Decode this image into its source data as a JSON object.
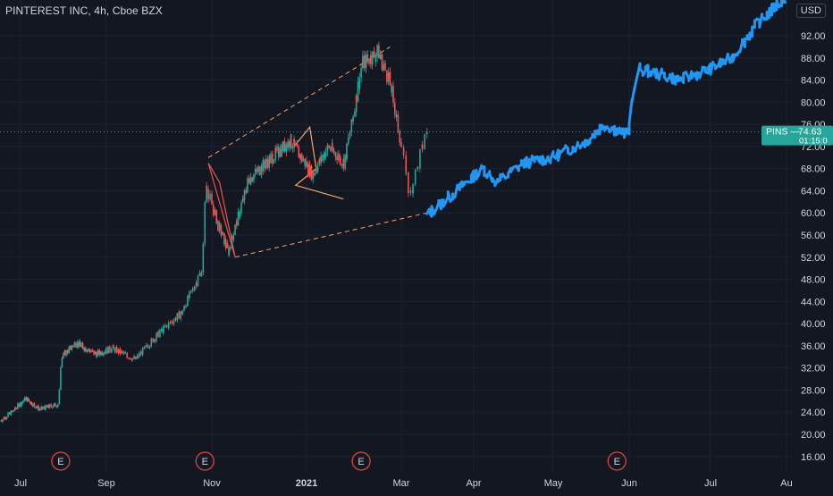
{
  "header": {
    "title": "PINTEREST INC, 4h, Cboe BZX",
    "currency": "USD"
  },
  "price_tag": {
    "symbol": "PINS",
    "price": "74.63",
    "countdown": "01:15:0"
  },
  "earnings_label": "E",
  "colors": {
    "background": "#131722",
    "grid": "#1e222d",
    "up": "#26a69a",
    "down": "#ef5350",
    "projection": "#2196f3",
    "pattern": "#f7a26b",
    "triangle": "#ef5350",
    "tag": "#26a69a",
    "text": "#d1d4dc",
    "earnings": "#e0453a"
  },
  "chart_data": {
    "type": "candlestick",
    "title": "PINTEREST INC, 4h, Cboe BZX",
    "currency": "USD",
    "last_price": 74.63,
    "ylim": [
      14,
      98
    ],
    "y_ticks": [
      16,
      20,
      24,
      28,
      32,
      36,
      40,
      44,
      48,
      52,
      56,
      60,
      64,
      68,
      72,
      76,
      80,
      84,
      88,
      92
    ],
    "x_ticks": [
      "Jul",
      "Sep",
      "Nov",
      "2021",
      "Mar",
      "Apr",
      "May",
      "Jun",
      "Jul",
      "Au"
    ],
    "x_tick_dates": [
      "2020-07-01",
      "2020-09-01",
      "2020-11-01",
      "2021-01-01",
      "2021-03-01",
      "2021-04-01",
      "2021-05-01",
      "2021-06-01",
      "2021-07-01",
      "2021-08-01"
    ],
    "earnings_dates": [
      "2020-07-30",
      "2020-10-28",
      "2021-02-04",
      "2021-05-27"
    ],
    "price_anchors": [
      [
        "2020-06-17",
        22.5
      ],
      [
        "2020-06-25",
        24.0
      ],
      [
        "2020-07-05",
        26.5
      ],
      [
        "2020-07-15",
        24.5
      ],
      [
        "2020-07-29",
        25.5
      ],
      [
        "2020-07-31",
        34.0
      ],
      [
        "2020-08-10",
        36.5
      ],
      [
        "2020-08-25",
        34.5
      ],
      [
        "2020-09-05",
        35.5
      ],
      [
        "2020-09-18",
        33.5
      ],
      [
        "2020-10-01",
        38.0
      ],
      [
        "2020-10-15",
        42.0
      ],
      [
        "2020-10-27",
        50.0
      ],
      [
        "2020-10-29",
        65.0
      ],
      [
        "2020-11-05",
        58.0
      ],
      [
        "2020-11-12",
        53.0
      ],
      [
        "2020-11-25",
        66.0
      ],
      [
        "2020-12-10",
        70.0
      ],
      [
        "2020-12-22",
        73.0
      ],
      [
        "2021-01-05",
        67.0
      ],
      [
        "2021-01-15",
        72.0
      ],
      [
        "2021-01-25",
        69.0
      ],
      [
        "2021-02-05",
        87.0
      ],
      [
        "2021-02-15",
        89.0
      ],
      [
        "2021-02-22",
        84.0
      ],
      [
        "2021-03-01",
        73.0
      ],
      [
        "2021-03-05",
        63.0
      ],
      [
        "2021-03-12",
        74.6
      ]
    ],
    "projection_path": [
      [
        "2021-03-12",
        59.5
      ],
      [
        "2021-03-25",
        64.0
      ],
      [
        "2021-04-05",
        68.0
      ],
      [
        "2021-04-10",
        65.5
      ],
      [
        "2021-04-20",
        69.0
      ],
      [
        "2021-05-01",
        70.0
      ],
      [
        "2021-05-15",
        73.0
      ],
      [
        "2021-05-22",
        76.0
      ],
      [
        "2021-06-01",
        74.0
      ],
      [
        "2021-06-02",
        80.0
      ],
      [
        "2021-06-05",
        86.0
      ],
      [
        "2021-06-20",
        84.0
      ],
      [
        "2021-07-01",
        86.0
      ],
      [
        "2021-07-10",
        88.0
      ],
      [
        "2021-07-20",
        94.0
      ],
      [
        "2021-08-01",
        99.0
      ]
    ],
    "drawings": {
      "wedge_upper": [
        [
          "2020-10-30",
          70.0
        ],
        [
          "2021-02-22",
          90.0
        ]
      ],
      "wedge_lower": [
        [
          "2020-11-16",
          52.0
        ],
        [
          "2021-03-12",
          60.0
        ]
      ],
      "triangle": [
        [
          "2020-11-16",
          52.0
        ],
        [
          "2020-10-30",
          69.0
        ],
        [
          "2020-11-06",
          65.5
        ]
      ],
      "pattern": [
        [
          "2020-12-24",
          72.0
        ],
        [
          "2021-01-03",
          75.5
        ],
        [
          "2021-01-07",
          68.0
        ],
        [
          "2020-12-25",
          65.0
        ],
        [
          "2021-01-24",
          62.5
        ]
      ]
    }
  }
}
